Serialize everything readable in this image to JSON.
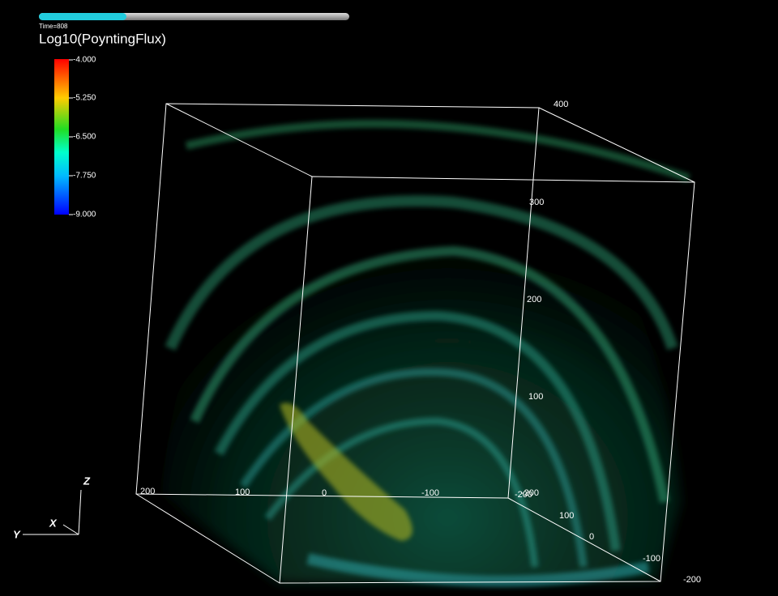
{
  "header": {
    "time": "Time=808",
    "title": "Log10(PoyntingFlux)"
  },
  "colorbar": {
    "ticks": [
      "-4.000",
      "-5.250",
      "-6.500",
      "-7.750",
      "-9.000"
    ]
  },
  "axes": {
    "z_ticks": [
      "400",
      "300",
      "200",
      "100",
      "-200"
    ],
    "x_ticks": [
      "200",
      "100",
      "0",
      "-100",
      "-200"
    ],
    "y_ticks": [
      "100",
      "0",
      "-100",
      "-200"
    ],
    "triad": [
      "Z",
      "X",
      "Y"
    ]
  }
}
